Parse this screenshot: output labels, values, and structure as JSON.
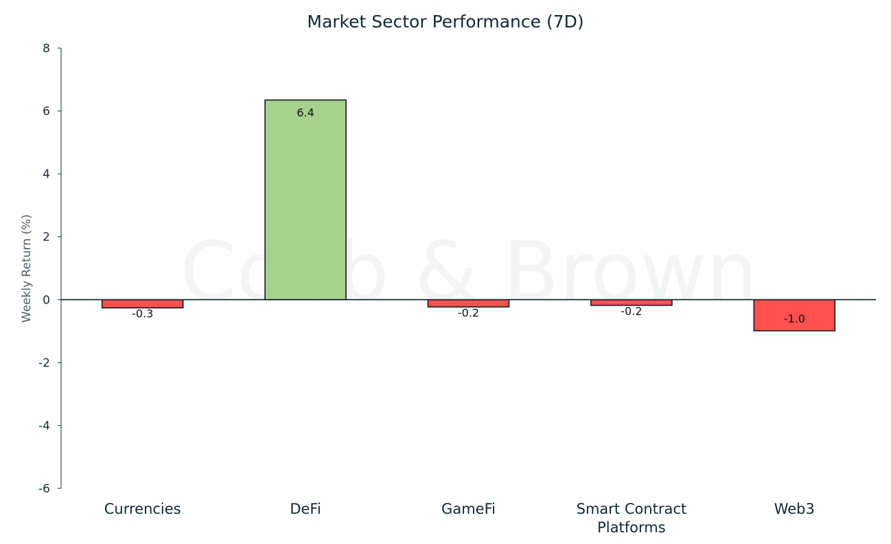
{
  "chart_data": {
    "type": "bar",
    "title": "Market Sector Performance (7D)",
    "ylabel": "Weekly  Return (%)",
    "xlabel": "",
    "categories": [
      [
        "Currencies"
      ],
      [
        "DeFi"
      ],
      [
        "GameFi"
      ],
      [
        "Smart Contract",
        "Platforms"
      ],
      [
        "Web3"
      ]
    ],
    "values": [
      -0.26,
      6.35,
      -0.23,
      -0.18,
      -0.99
    ],
    "data_labels": [
      "-0.3",
      "6.4",
      "-0.2",
      "-0.2",
      "-1.0"
    ],
    "ylim": [
      -6,
      8
    ],
    "yticks": [
      8,
      6,
      4,
      2,
      0,
      -2,
      -4,
      -6
    ],
    "grid": false,
    "colors": {
      "positive": "#a9d18e",
      "negative": "#ff4f4f",
      "bar_edge": "#0c1c22",
      "axis": "#1b2b33"
    },
    "watermark": "Cobb & Brown"
  }
}
